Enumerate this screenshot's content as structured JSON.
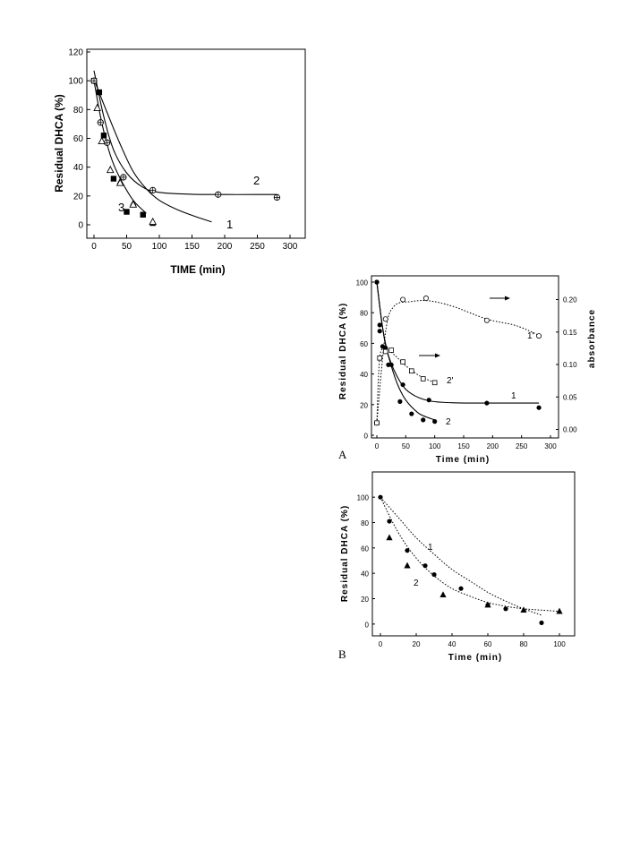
{
  "chart_data": [
    {
      "type": "scatter",
      "xlabel": "TIME (min)",
      "ylabel": "Residual DHCA (%)",
      "xlim": [
        0,
        300
      ],
      "ylim": [
        0,
        120
      ],
      "xticks": [
        0,
        50,
        100,
        150,
        200,
        250,
        300
      ],
      "yticks": [
        0,
        20,
        40,
        60,
        80,
        100,
        120
      ],
      "series": [
        {
          "name": "1",
          "marker": "filled-square",
          "points": [
            [
              0,
              100
            ],
            [
              8,
              92
            ],
            [
              15,
              62
            ],
            [
              30,
              32
            ],
            [
              50,
              9
            ],
            [
              75,
              7
            ]
          ],
          "fit": [
            [
              0,
              101
            ],
            [
              20,
              78
            ],
            [
              40,
              56
            ],
            [
              60,
              37
            ],
            [
              80,
              25
            ],
            [
              100,
              17
            ],
            [
              130,
              10
            ],
            [
              160,
              5
            ],
            [
              180,
              2
            ]
          ]
        },
        {
          "name": "2",
          "marker": "crossed-circle",
          "points": [
            [
              0,
              100
            ],
            [
              10,
              71
            ],
            [
              20,
              57
            ],
            [
              45,
              33
            ],
            [
              90,
              24
            ],
            [
              190,
              21
            ],
            [
              280,
              19
            ]
          ],
          "fit": [
            [
              0,
              107
            ],
            [
              15,
              75
            ],
            [
              30,
              52
            ],
            [
              50,
              36
            ],
            [
              75,
              26
            ],
            [
              100,
              22.5
            ],
            [
              150,
              21.2
            ],
            [
              200,
              21
            ],
            [
              250,
              21
            ],
            [
              280,
              21
            ]
          ]
        },
        {
          "name": "3",
          "marker": "filled-triangle",
          "points": [
            [
              5,
              81
            ],
            [
              12,
              58
            ],
            [
              25,
              38
            ],
            [
              40,
              30
            ],
            [
              60,
              15
            ],
            [
              90,
              1
            ]
          ]
        },
        {
          "name": "3",
          "marker": "open-triangle",
          "points": [
            [
              5,
              81
            ],
            [
              12,
              58
            ],
            [
              25,
              38
            ],
            [
              40,
              29
            ],
            [
              60,
              14
            ],
            [
              90,
              2
            ]
          ],
          "fit": [
            [
              0,
              100
            ],
            [
              10,
              75
            ],
            [
              20,
              56
            ],
            [
              30,
              42
            ],
            [
              45,
              28
            ],
            [
              60,
              17
            ],
            [
              75,
              10
            ],
            [
              80,
              8
            ]
          ]
        }
      ],
      "curve_labels": [
        "1",
        "2",
        "3"
      ]
    },
    {
      "type": "scatter",
      "panel_label": "A",
      "xlabel": "Time (min)",
      "ylabel": "Residual DHCA (%)",
      "y2label": "absorbance",
      "xlim": [
        0,
        300
      ],
      "ylim": [
        0,
        100
      ],
      "y2lim": [
        -0.02,
        0.22
      ],
      "xticks": [
        0,
        50,
        100,
        150,
        200,
        250,
        300
      ],
      "yticks": [
        0,
        20,
        40,
        60,
        80,
        100
      ],
      "y2ticks": [
        "0.00",
        "0.05",
        "0.10",
        "0.15",
        "0.20"
      ],
      "series": [
        {
          "name": "1",
          "marker": "filled-circle",
          "points": [
            [
              0,
              100
            ],
            [
              5,
              68
            ],
            [
              10,
              58
            ],
            [
              20,
              46
            ],
            [
              45,
              33
            ],
            [
              90,
              23
            ],
            [
              190,
              21
            ],
            [
              280,
              18
            ]
          ],
          "fit": [
            [
              0,
              100
            ],
            [
              10,
              70
            ],
            [
              20,
              52
            ],
            [
              40,
              35
            ],
            [
              60,
              27
            ],
            [
              90,
              22.5
            ],
            [
              130,
              21.2
            ],
            [
              200,
              21
            ],
            [
              280,
              21
            ]
          ]
        },
        {
          "name": "2",
          "marker": "filled-circle",
          "points": [
            [
              0,
              100
            ],
            [
              5,
              72
            ],
            [
              15,
              57
            ],
            [
              25,
              46
            ],
            [
              40,
              22
            ],
            [
              60,
              14
            ],
            [
              80,
              10
            ],
            [
              100,
              9
            ]
          ],
          "fit": [
            [
              0,
              100
            ],
            [
              10,
              70
            ],
            [
              20,
              52
            ],
            [
              35,
              34
            ],
            [
              50,
              23
            ],
            [
              70,
              15
            ],
            [
              85,
              12
            ],
            [
              100,
              10
            ]
          ]
        },
        {
          "name": "1'",
          "marker": "open-circle",
          "axis": "right",
          "points": [
            [
              0,
              0.01
            ],
            [
              15,
              0.17
            ],
            [
              45,
              0.2
            ],
            [
              85,
              0.202
            ],
            [
              190,
              0.168
            ],
            [
              280,
              0.144
            ]
          ],
          "fit": [
            [
              0,
              0.01
            ],
            [
              15,
              0.15
            ],
            [
              30,
              0.19
            ],
            [
              60,
              0.197
            ],
            [
              90,
              0.198
            ],
            [
              130,
              0.19
            ],
            [
              190,
              0.17
            ],
            [
              240,
              0.16
            ],
            [
              280,
              0.145
            ]
          ]
        },
        {
          "name": "2'",
          "marker": "open-square",
          "axis": "right",
          "points": [
            [
              0,
              0.01
            ],
            [
              5,
              0.11
            ],
            [
              15,
              0.12
            ],
            [
              25,
              0.122
            ],
            [
              45,
              0.104
            ],
            [
              60,
              0.09
            ],
            [
              80,
              0.078
            ],
            [
              100,
              0.072
            ]
          ],
          "fit": [
            [
              0,
              0.01
            ],
            [
              5,
              0.11
            ],
            [
              15,
              0.125
            ],
            [
              30,
              0.115
            ],
            [
              50,
              0.098
            ],
            [
              75,
              0.082
            ],
            [
              100,
              0.072
            ]
          ]
        }
      ],
      "curve_labels": [
        "1",
        "2",
        "1'",
        "2'"
      ]
    },
    {
      "type": "scatter",
      "panel_label": "B",
      "xlabel": "Time (min)",
      "ylabel": "Residual DHCA (%)",
      "xlim": [
        0,
        100
      ],
      "ylim": [
        -10,
        110
      ],
      "xticks": [
        0,
        20,
        40,
        60,
        80,
        100
      ],
      "yticks": [
        0,
        20,
        40,
        60,
        80,
        100
      ],
      "series": [
        {
          "name": "1",
          "marker": "filled-circle",
          "points": [
            [
              0,
              100
            ],
            [
              5,
              81
            ],
            [
              15,
              58
            ],
            [
              25,
              46
            ],
            [
              30,
              39
            ],
            [
              45,
              28
            ],
            [
              60,
              15
            ],
            [
              70,
              12
            ],
            [
              90,
              1
            ]
          ],
          "fit": [
            [
              0,
              100
            ],
            [
              10,
              84
            ],
            [
              20,
              68
            ],
            [
              30,
              55
            ],
            [
              40,
              43
            ],
            [
              50,
              34
            ],
            [
              60,
              25
            ],
            [
              70,
              18
            ],
            [
              80,
              12
            ],
            [
              90,
              7
            ]
          ]
        },
        {
          "name": "2",
          "marker": "filled-triangle",
          "points": [
            [
              5,
              68
            ],
            [
              15,
              46
            ],
            [
              35,
              23
            ],
            [
              60,
              15
            ],
            [
              80,
              11
            ],
            [
              100,
              10
            ]
          ],
          "fit": [
            [
              0,
              100
            ],
            [
              10,
              72
            ],
            [
              20,
              52
            ],
            [
              30,
              38
            ],
            [
              40,
              28
            ],
            [
              50,
              22
            ],
            [
              60,
              17
            ],
            [
              70,
              14
            ],
            [
              80,
              12
            ],
            [
              90,
              11
            ],
            [
              100,
              10
            ]
          ]
        }
      ],
      "curve_labels": [
        "1",
        "2"
      ]
    }
  ]
}
